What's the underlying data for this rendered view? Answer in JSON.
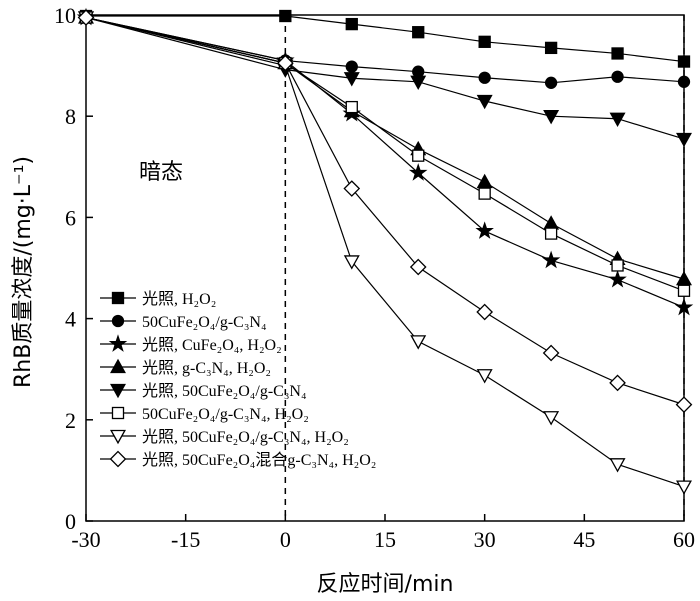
{
  "chart_data": {
    "type": "line",
    "xlabel": "反应时间/min",
    "ylabel": "RhB质量浓度/(mg·L⁻¹)",
    "xlim": [
      -30,
      60
    ],
    "ylim": [
      0,
      10
    ],
    "xticks": [
      -30,
      -15,
      0,
      15,
      30,
      45,
      60
    ],
    "yticks": [
      0,
      2,
      4,
      6,
      8,
      10
    ],
    "grid": false,
    "legend_position": "bottom-left",
    "annotation": "暗态",
    "vlines": [
      0,
      60
    ],
    "series": [
      {
        "name": "光照, H₂O₂",
        "marker": "square-filled",
        "points": [
          [
            -30,
            9.98
          ],
          [
            0,
            9.98
          ],
          [
            10,
            9.82
          ],
          [
            20,
            9.66
          ],
          [
            30,
            9.47
          ],
          [
            40,
            9.35
          ],
          [
            50,
            9.24
          ],
          [
            60,
            9.08
          ]
        ]
      },
      {
        "name": "50CuFe₂O₄/g-C₃N₄",
        "marker": "circle-filled",
        "points": [
          [
            -30,
            9.95
          ],
          [
            0,
            9.1
          ],
          [
            10,
            8.98
          ],
          [
            20,
            8.88
          ],
          [
            30,
            8.76
          ],
          [
            40,
            8.66
          ],
          [
            50,
            8.78
          ],
          [
            60,
            8.68
          ]
        ]
      },
      {
        "name": "光照, CuFe₂O₄, H₂O₂",
        "marker": "star-filled",
        "points": [
          [
            -30,
            9.95
          ],
          [
            0,
            9.1
          ],
          [
            10,
            8.05
          ],
          [
            20,
            6.88
          ],
          [
            30,
            5.73
          ],
          [
            40,
            5.15
          ],
          [
            50,
            4.77
          ],
          [
            60,
            4.22
          ]
        ]
      },
      {
        "name": "光照, g-C₃N₄, H₂O₂",
        "marker": "triangle-up-filled",
        "points": [
          [
            -30,
            9.95
          ],
          [
            0,
            9.05
          ],
          [
            10,
            8.1
          ],
          [
            20,
            7.35
          ],
          [
            30,
            6.7
          ],
          [
            40,
            5.88
          ],
          [
            50,
            5.18
          ],
          [
            60,
            4.78
          ]
        ]
      },
      {
        "name": "光照, 50CuFe₂O₄/g-C₃N₄",
        "marker": "triangle-down-filled",
        "points": [
          [
            -30,
            9.95
          ],
          [
            0,
            8.92
          ],
          [
            10,
            8.75
          ],
          [
            20,
            8.68
          ],
          [
            30,
            8.3
          ],
          [
            40,
            8.0
          ],
          [
            50,
            7.95
          ],
          [
            60,
            7.55
          ]
        ]
      },
      {
        "name": "50CuFe₂O₄/g-C₃N₄, H₂O₂",
        "marker": "square-open",
        "points": [
          [
            -30,
            9.95
          ],
          [
            0,
            9.05
          ],
          [
            10,
            8.18
          ],
          [
            20,
            7.22
          ],
          [
            30,
            6.47
          ],
          [
            40,
            5.68
          ],
          [
            50,
            5.05
          ],
          [
            60,
            4.55
          ]
        ]
      },
      {
        "name": "光照, 50CuFe₂O₄/g-C₃N₄, H₂O₂",
        "marker": "triangle-down-open",
        "points": [
          [
            -30,
            9.95
          ],
          [
            0,
            9.0
          ],
          [
            10,
            5.13
          ],
          [
            20,
            3.55
          ],
          [
            30,
            2.88
          ],
          [
            40,
            2.05
          ],
          [
            50,
            1.12
          ],
          [
            60,
            0.68
          ]
        ]
      },
      {
        "name": "光照, 50CuFe₂O₄混合g-C₃N₄, H₂O₂",
        "marker": "diamond-open",
        "points": [
          [
            -30,
            9.95
          ],
          [
            0,
            9.05
          ],
          [
            10,
            6.57
          ],
          [
            20,
            5.02
          ],
          [
            30,
            4.13
          ],
          [
            40,
            3.32
          ],
          [
            50,
            2.73
          ],
          [
            60,
            2.3
          ]
        ]
      }
    ]
  }
}
